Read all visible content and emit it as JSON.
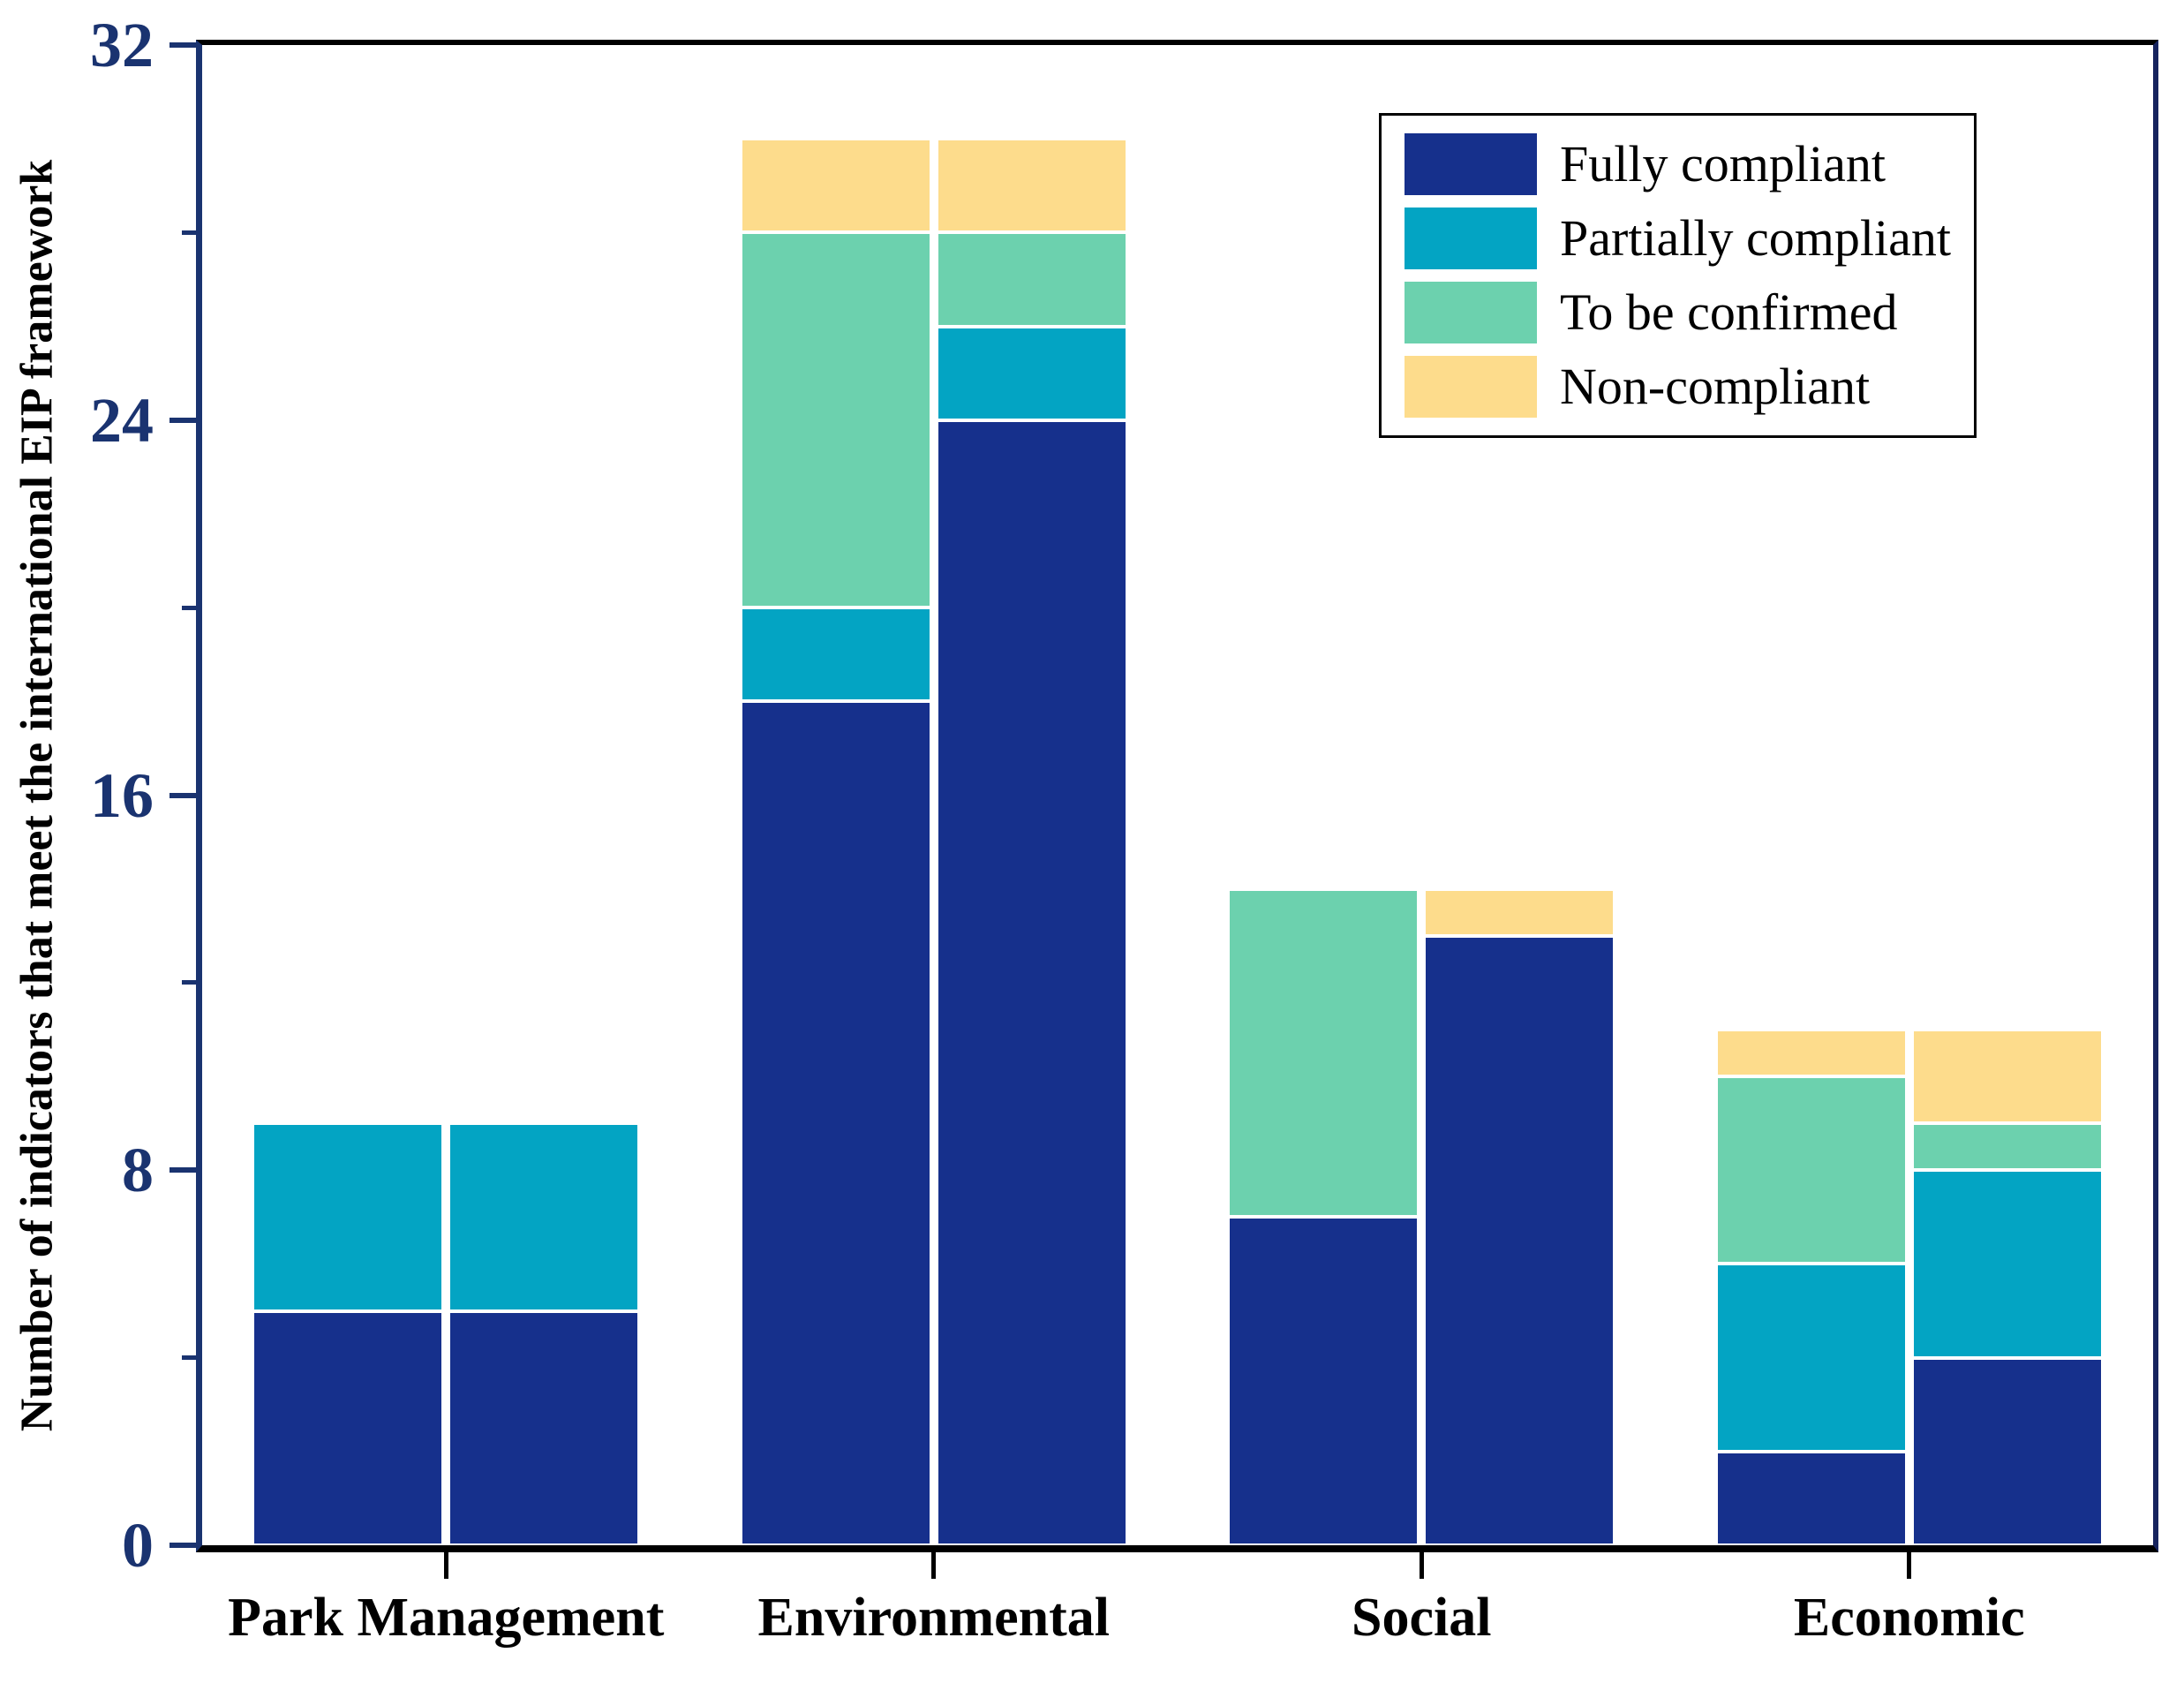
{
  "figure": {
    "background": "#ffffff"
  },
  "y_axis": {
    "title": "Number of indicators that meet the international EIP framework",
    "min": 0,
    "max": 32,
    "major_ticks": [
      0,
      8,
      16,
      24,
      32
    ],
    "minor_ticks": [
      4,
      12,
      20,
      28
    ],
    "color": "#1a3370"
  },
  "x_axis": {
    "categories": [
      "Park Management",
      "Environmental",
      "Social",
      "Economic"
    ],
    "label_color": "#000000"
  },
  "legend": {
    "position": "top-right",
    "items": [
      {
        "label": "Fully compliant",
        "color": "#16308c"
      },
      {
        "label": "Partially compliant",
        "color": "#03a4c3"
      },
      {
        "label": "To be confirmed",
        "color": "#6cd1ae"
      },
      {
        "label": "Non-compliant",
        "color": "#fddc8c"
      }
    ]
  },
  "chart_data": {
    "type": "bar",
    "stacked": true,
    "bars_per_category": 2,
    "categories": [
      "Park Management",
      "Environmental",
      "Social",
      "Economic"
    ],
    "series": [
      {
        "name": "Fully compliant",
        "color": "#16308c",
        "values": [
          [
            5,
            5
          ],
          [
            18,
            24
          ],
          [
            7,
            13
          ],
          [
            2,
            4
          ]
        ]
      },
      {
        "name": "Partially compliant",
        "color": "#03a4c3",
        "values": [
          [
            4,
            4
          ],
          [
            2,
            2
          ],
          [
            0,
            0
          ],
          [
            4,
            4
          ]
        ]
      },
      {
        "name": "To be confirmed",
        "color": "#6cd1ae",
        "values": [
          [
            0,
            0
          ],
          [
            8,
            2
          ],
          [
            7,
            0
          ],
          [
            4,
            1
          ]
        ]
      },
      {
        "name": "Non-compliant",
        "color": "#fddc8c",
        "values": [
          [
            0,
            0
          ],
          [
            2,
            2
          ],
          [
            0,
            1
          ],
          [
            1,
            2
          ]
        ]
      }
    ],
    "bar_totals": [
      [
        9,
        9
      ],
      [
        30,
        30
      ],
      [
        14,
        14
      ],
      [
        11,
        11
      ]
    ],
    "ylim": [
      0,
      32
    ],
    "grid": false,
    "legend_position": "upper right"
  }
}
